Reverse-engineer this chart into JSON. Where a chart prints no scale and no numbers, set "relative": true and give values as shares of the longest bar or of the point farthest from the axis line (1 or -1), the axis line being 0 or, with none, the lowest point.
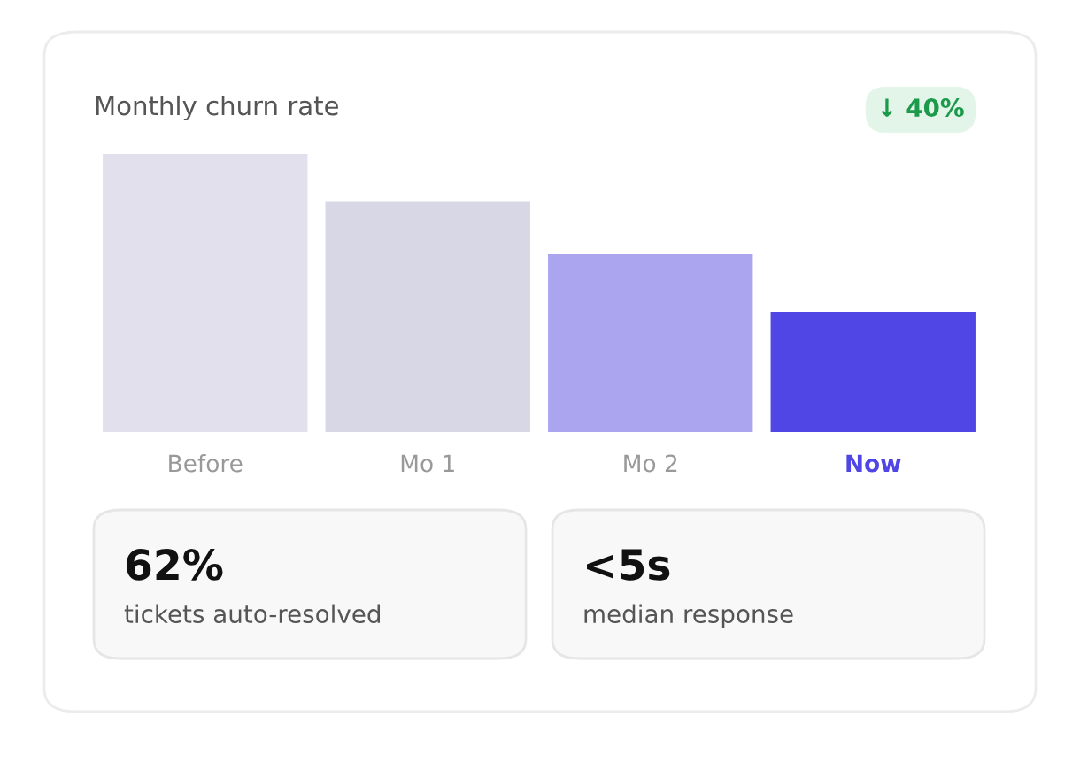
{
  "chart_data": [
    {
      "type": "bar",
      "title": "Monthly churn rate",
      "relative": true,
      "categories": [
        "Before",
        "Mo 1",
        "Mo 2",
        "Now"
      ],
      "values": [
        1,
        0.83,
        0.64,
        0.43
      ],
      "colors": [
        "#e2e0ec",
        "#d8d7e5",
        "#aba5f0",
        "#4f46e5"
      ],
      "annotations": [
        "↓ 40%"
      ]
    },
    {
      "type": "other",
      "annotations": [
        "62%",
        "tickets auto-resolved",
        "<5s",
        "median response"
      ]
    }
  ]
}
